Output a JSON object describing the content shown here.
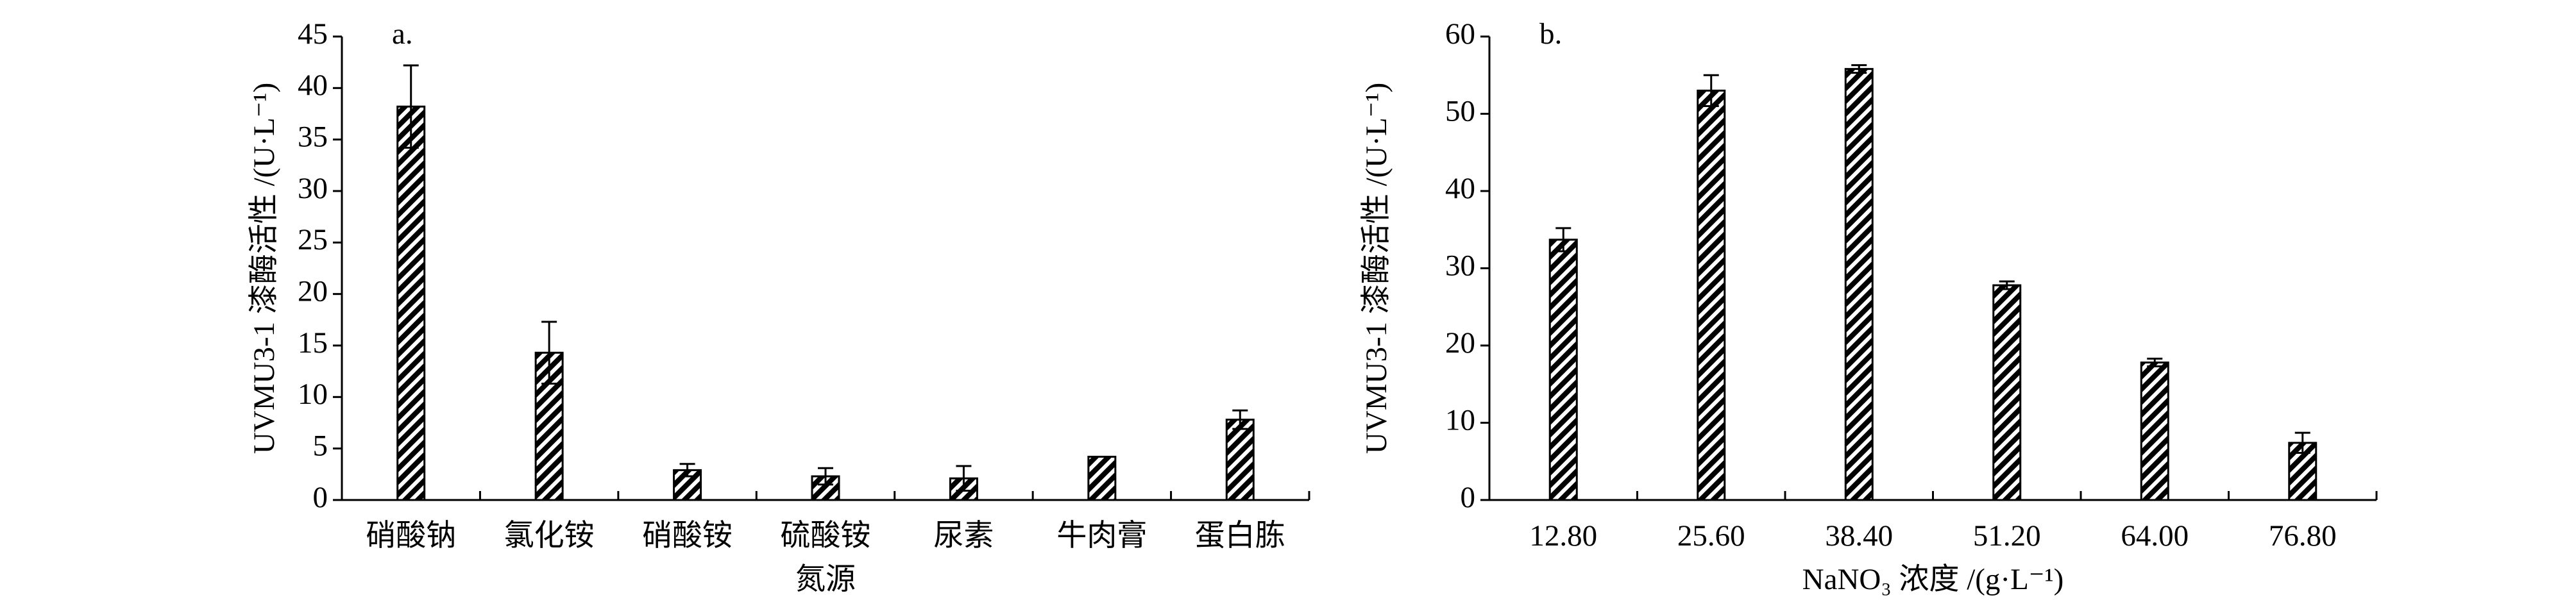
{
  "chart_data": [
    {
      "type": "bar",
      "panel": "a.",
      "ylabel": "UVMU3-1 漆酶活性 /(U·L⁻¹)",
      "xlabel": "氮源",
      "categories": [
        "硝酸钠",
        "氯化铵",
        "硝酸铵",
        "硫酸铵",
        "尿素",
        "牛肉膏",
        "蛋白胨"
      ],
      "values": [
        38.2,
        14.3,
        2.9,
        2.3,
        2.1,
        4.2,
        7.8
      ],
      "errors": [
        4.0,
        3.0,
        0.6,
        0.8,
        1.2,
        0,
        0.9
      ],
      "color": "#000000",
      "ylim": [
        0,
        45
      ],
      "yticks": [
        0,
        5,
        10,
        15,
        20,
        25,
        30,
        35,
        40,
        45
      ]
    },
    {
      "type": "bar",
      "panel": "b.",
      "ylabel": "UVMU3-1 漆酶活性 /(U·L⁻¹)",
      "xlabel": "NaNO₃ 浓度 /(g·L⁻¹)",
      "categories": [
        "12.80",
        "25.60",
        "38.40",
        "51.20",
        "64.00",
        "76.80"
      ],
      "values": [
        33.7,
        53.0,
        55.8,
        27.8,
        17.8,
        7.4
      ],
      "errors": [
        1.5,
        2.0,
        0.5,
        0.5,
        0.5,
        1.3
      ],
      "color": "#000000",
      "ylim": [
        0,
        60
      ],
      "yticks": [
        0,
        10,
        20,
        30,
        40,
        50,
        60
      ]
    }
  ]
}
